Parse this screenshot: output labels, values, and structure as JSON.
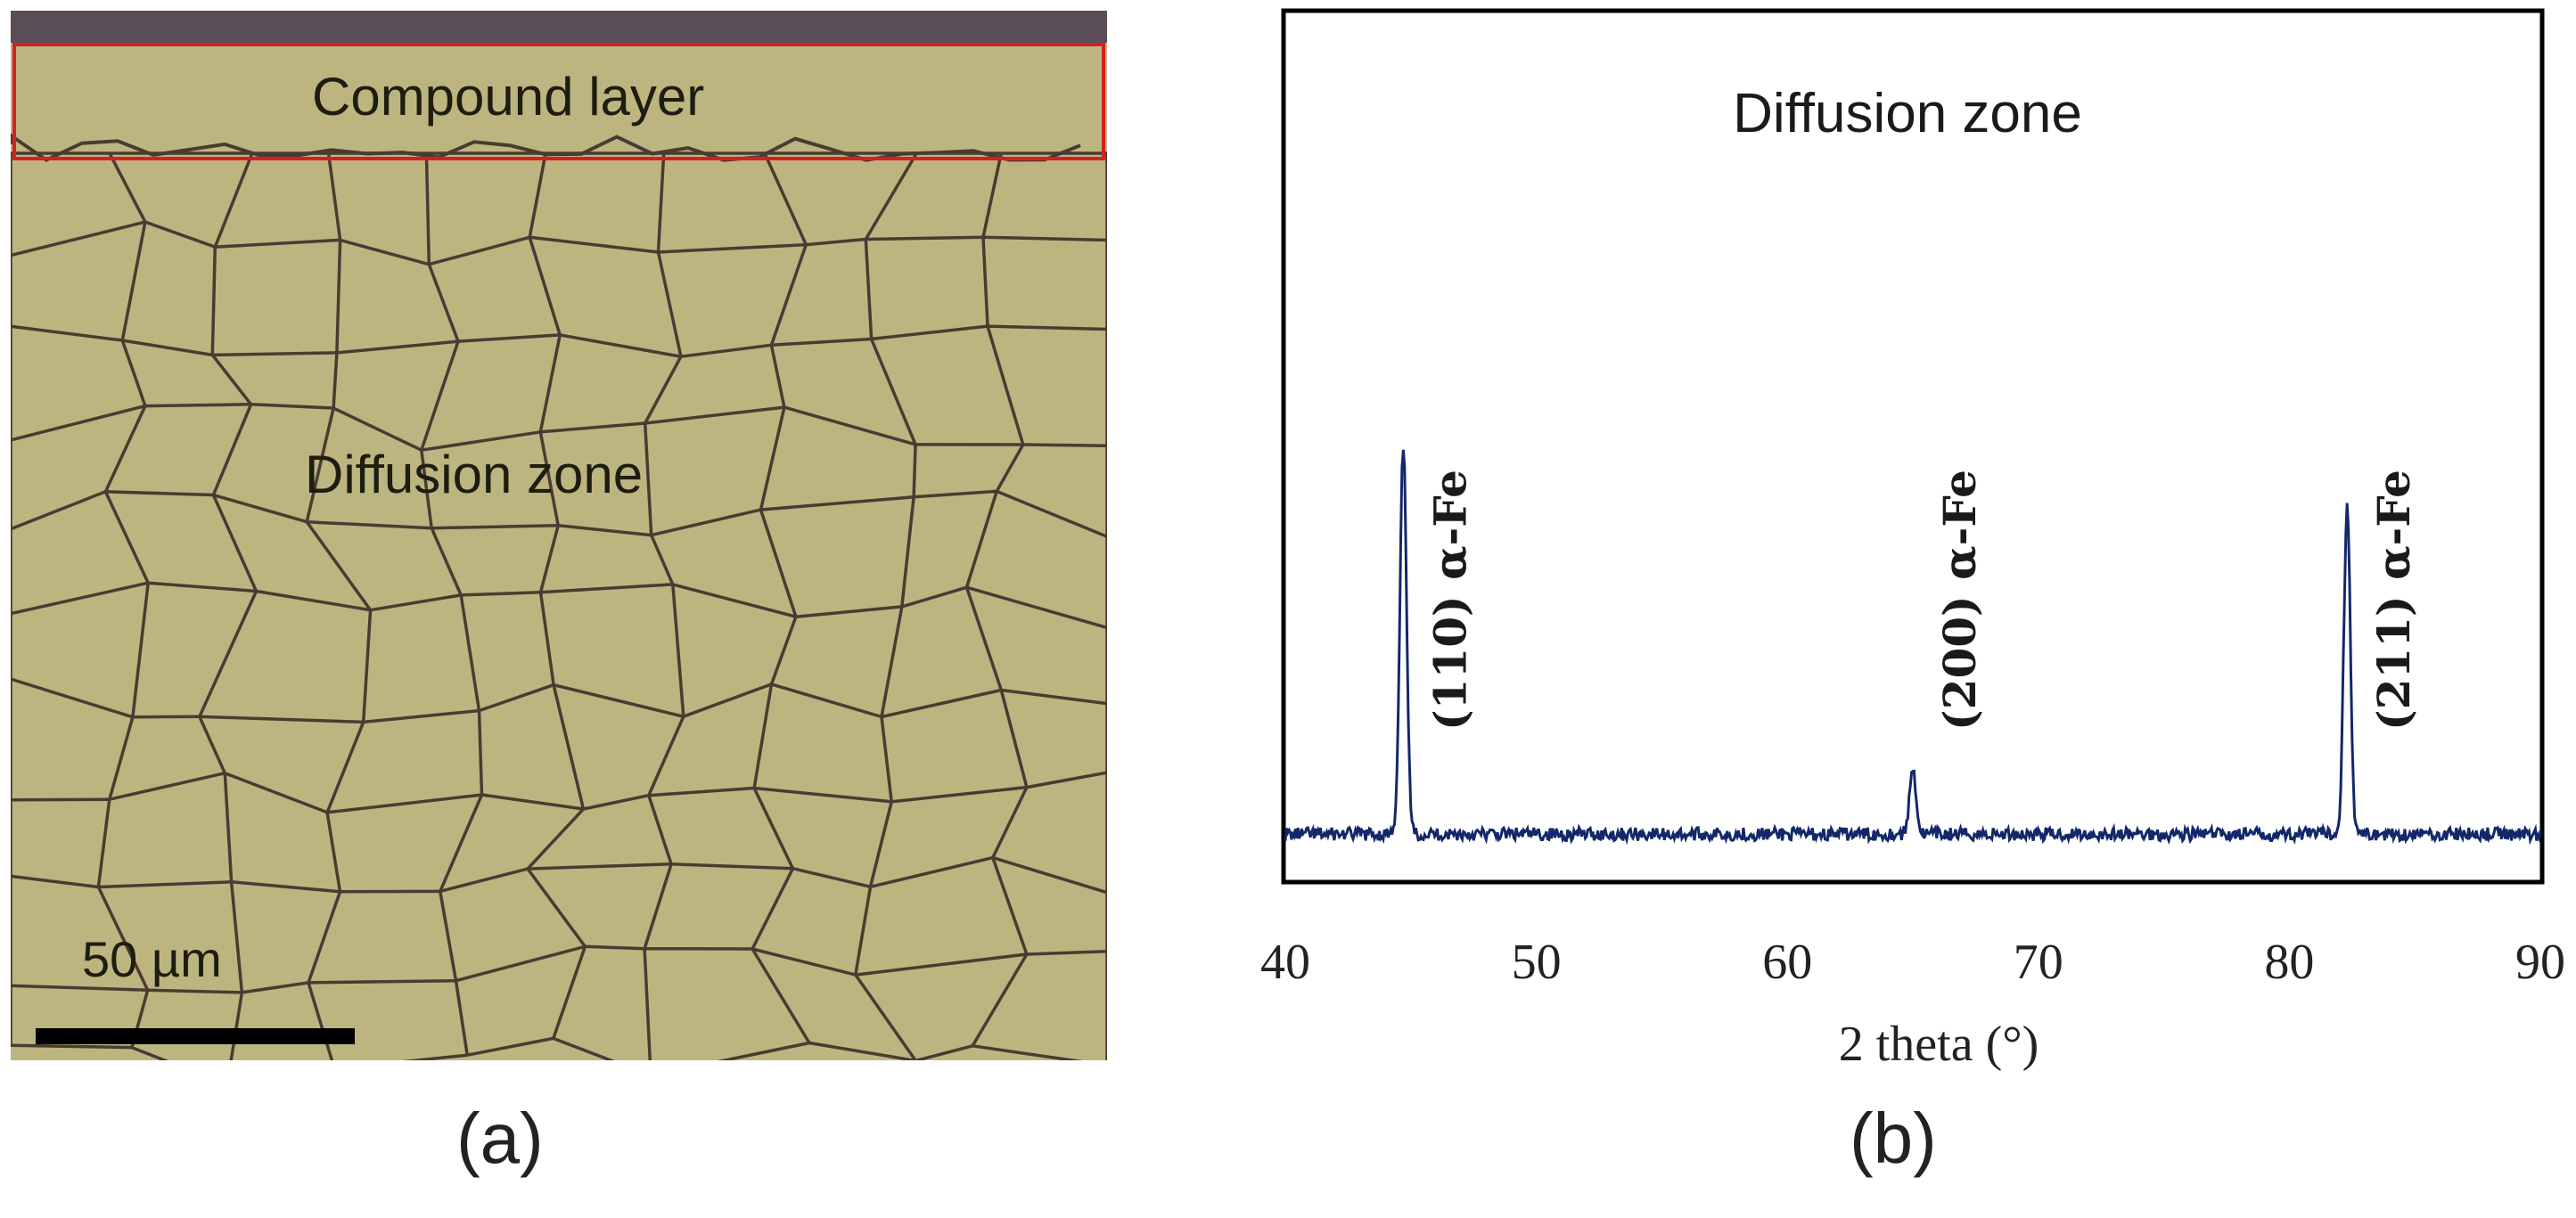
{
  "panel_a": {
    "compound_label": "Compound layer",
    "diffusion_label": "Diffusion zone",
    "scale_label": "50 µm",
    "caption": "(a)",
    "colors": {
      "matrix": "#bdb580",
      "grain_boundary": "#4a3b32",
      "highlight_box": "#d42020",
      "top_band": "#5b4e58"
    }
  },
  "panel_b": {
    "caption": "(b)"
  },
  "chart_data": {
    "type": "line",
    "title": "Diffusion zone",
    "xlabel": "2 theta (°)",
    "ylabel": "",
    "xlim": [
      40,
      90
    ],
    "ylim": [
      0,
      100
    ],
    "xticks": [
      "40",
      "50",
      "60",
      "70",
      "80",
      "90"
    ],
    "grid": false,
    "line_color": "#13286a",
    "baseline": 6,
    "peaks": [
      {
        "x": 44.7,
        "height": 100,
        "label": "(110) α-Fe"
      },
      {
        "x": 65.0,
        "height": 22,
        "label": "(200) α-Fe"
      },
      {
        "x": 82.3,
        "height": 86,
        "label": "(211) α-Fe"
      }
    ]
  }
}
